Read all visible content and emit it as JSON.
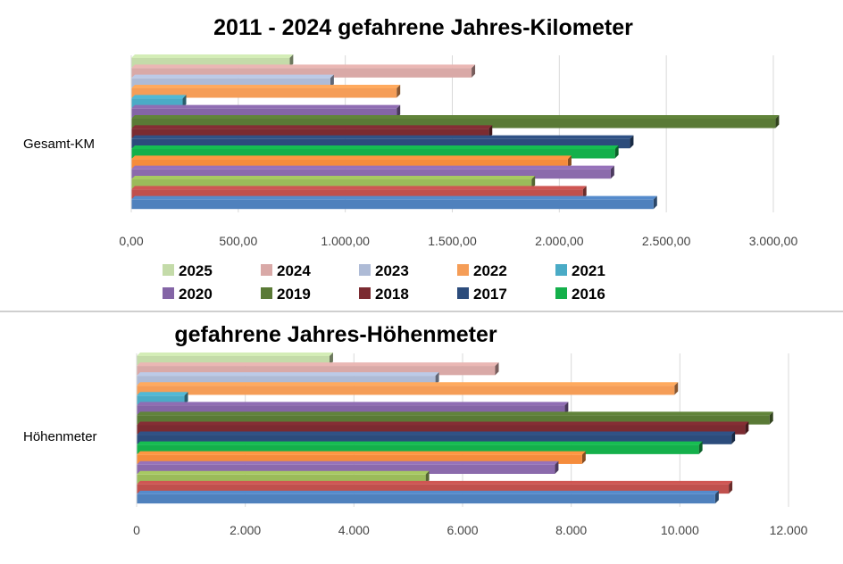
{
  "chart_data": [
    {
      "type": "bar",
      "orientation": "horizontal",
      "title": "2011 - 2024  gefahrene Jahres-Kilometer",
      "categories": [
        "Gesamt-KM"
      ],
      "xlim": [
        0,
        3000
      ],
      "ticks": [
        "0,00",
        "500,00",
        "1.000,00",
        "1.500,00",
        "2.000,00",
        "2.500,00",
        "3.000,00"
      ],
      "tick_values": [
        0,
        500,
        1000,
        1500,
        2000,
        2500,
        3000
      ],
      "grid": true,
      "legend_position": "bottom",
      "series": [
        {
          "name": "2025",
          "values": [
            740
          ]
        },
        {
          "name": "2024",
          "values": [
            1590
          ]
        },
        {
          "name": "2023",
          "values": [
            930
          ]
        },
        {
          "name": "2022",
          "values": [
            1240
          ]
        },
        {
          "name": "2021",
          "values": [
            240
          ]
        },
        {
          "name": "2020",
          "values": [
            1240
          ]
        },
        {
          "name": "2019",
          "values": [
            3010
          ]
        },
        {
          "name": "2018",
          "values": [
            1670
          ]
        },
        {
          "name": "2017",
          "values": [
            2330
          ]
        },
        {
          "name": "2016",
          "values": [
            2260
          ]
        },
        {
          "name": "",
          "values": [
            2040
          ]
        },
        {
          "name": "",
          "values": [
            2240
          ]
        },
        {
          "name": "",
          "values": [
            1870
          ]
        },
        {
          "name": "",
          "values": [
            2110
          ]
        },
        {
          "name": "",
          "values": [
            2440
          ]
        }
      ]
    },
    {
      "type": "bar",
      "orientation": "horizontal",
      "title": "gefahrene Jahres-Höhenmeter",
      "categories": [
        "Höhenmeter"
      ],
      "xlim": [
        0,
        12000
      ],
      "ticks": [
        "0",
        "2.000",
        "4.000",
        "6.000",
        "8.000",
        "10.000",
        "12.000"
      ],
      "tick_values": [
        0,
        2000,
        4000,
        6000,
        8000,
        10000,
        12000
      ],
      "grid": true,
      "series": [
        {
          "name": "2025",
          "values": [
            3550
          ]
        },
        {
          "name": "2024",
          "values": [
            6600
          ]
        },
        {
          "name": "2023",
          "values": [
            5500
          ]
        },
        {
          "name": "2022",
          "values": [
            9900
          ]
        },
        {
          "name": "2021",
          "values": [
            880
          ]
        },
        {
          "name": "2020",
          "values": [
            7880
          ]
        },
        {
          "name": "2019",
          "values": [
            11650
          ]
        },
        {
          "name": "2018",
          "values": [
            11200
          ]
        },
        {
          "name": "2017",
          "values": [
            10950
          ]
        },
        {
          "name": "2016",
          "values": [
            10350
          ]
        },
        {
          "name": "",
          "values": [
            8200
          ]
        },
        {
          "name": "",
          "values": [
            7700
          ]
        },
        {
          "name": "",
          "values": [
            5320
          ]
        },
        {
          "name": "",
          "values": [
            10900
          ]
        },
        {
          "name": "",
          "values": [
            10650
          ]
        }
      ]
    }
  ],
  "colors": [
    "#c4dba9",
    "#d9a9a7",
    "#aebbd6",
    "#f59d57",
    "#4aabc6",
    "#8465a6",
    "#5a7a36",
    "#7b2b31",
    "#2c4c7c",
    "#14b04b",
    "#f58c3c",
    "#8b6aac",
    "#9bbb5a",
    "#c0504d",
    "#4f81bd"
  ],
  "legend": [
    [
      "2025",
      "2024",
      "2023",
      "2022",
      "2021"
    ],
    [
      "2020",
      "2019",
      "2018",
      "2017",
      "2016"
    ]
  ]
}
